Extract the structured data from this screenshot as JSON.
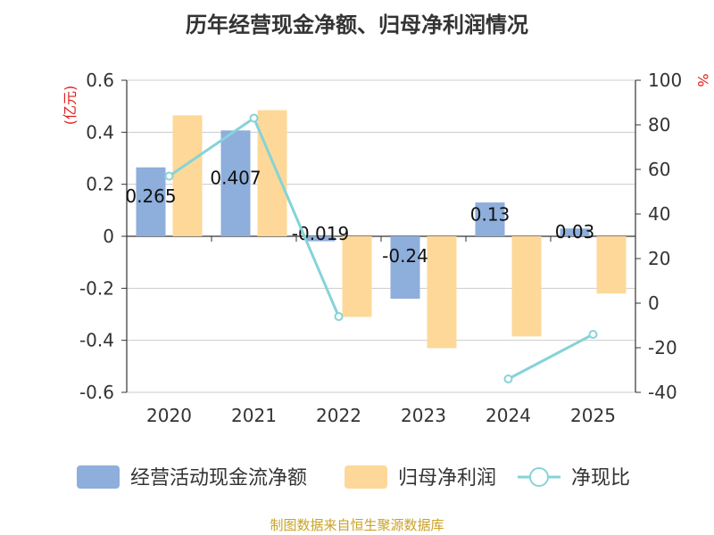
{
  "chart_data": {
    "type": "bar",
    "title": "历年经营现金净额、归母净利润情况",
    "categories": [
      "2020",
      "2021",
      "2022",
      "2023",
      "2024",
      "2025"
    ],
    "series": [
      {
        "name": "经营活动现金流净额",
        "kind": "bar",
        "axis": "left",
        "color": "#8eaedb",
        "values": [
          0.265,
          0.407,
          -0.019,
          -0.24,
          0.13,
          0.03
        ],
        "labels": [
          "0.265",
          "0.407",
          "-0.019",
          "-0.24",
          "0.13",
          "0.03"
        ]
      },
      {
        "name": "归母净利润",
        "kind": "bar",
        "axis": "left",
        "color": "#fdd898",
        "values": [
          0.465,
          0.485,
          -0.31,
          -0.43,
          -0.385,
          -0.22
        ]
      },
      {
        "name": "净现比",
        "kind": "line",
        "axis": "right",
        "color": "#86d3d8",
        "values": [
          57,
          83,
          -6,
          null,
          -34,
          -14
        ]
      }
    ],
    "ylabel_left": "(亿元)",
    "ylabel_right": "%",
    "ylim_left": [
      -0.6,
      0.6
    ],
    "yticks_left": [
      -0.6,
      -0.4,
      -0.2,
      0,
      0.2,
      0.4,
      0.6
    ],
    "ytick_labels_left": [
      "-0.6",
      "-0.4",
      "-0.2",
      "0",
      "0.2",
      "0.4",
      "0.6"
    ],
    "ylim_right": [
      -40,
      100
    ],
    "yticks_right": [
      -40,
      -20,
      0,
      20,
      40,
      60,
      80,
      100
    ],
    "ytick_labels_right": [
      "-40",
      "-20",
      "0",
      "20",
      "40",
      "60",
      "80",
      "100"
    ],
    "grid": true,
    "legend": "bottom"
  },
  "source": "制图数据来自恒生聚源数据库"
}
